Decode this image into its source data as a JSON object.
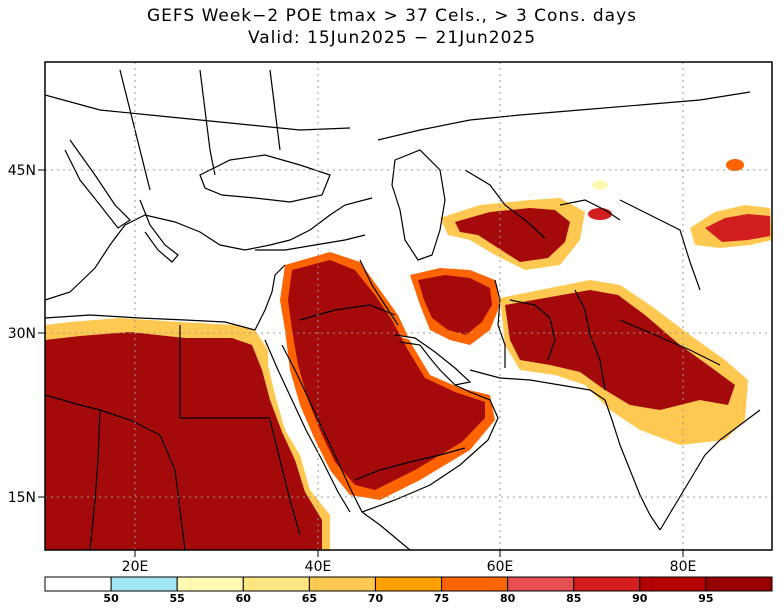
{
  "title": {
    "line1": "GEFS Week−2 POE tmax > 37 Cels., > 3 Cons. days",
    "line2": "Valid: 15Jun2025 − 21Jun2025"
  },
  "lat_labels": [
    "45N",
    "30N",
    "15N"
  ],
  "lon_labels": [
    "20E",
    "40E",
    "60E",
    "80E"
  ],
  "colorbar": {
    "colors": [
      "#ffffff",
      "#a0e6f5",
      "#fff9b4",
      "#ffe682",
      "#ffc850",
      "#ffa000",
      "#ff6400",
      "#e65050",
      "#d21e1e",
      "#b40000",
      "#960000"
    ],
    "labels": [
      "50",
      "55",
      "60",
      "65",
      "70",
      "75",
      "80",
      "85",
      "90",
      "95"
    ]
  },
  "map_style": {
    "grid": "dotted",
    "border_color": "#000000",
    "dark_fill": "#a50a0a"
  }
}
